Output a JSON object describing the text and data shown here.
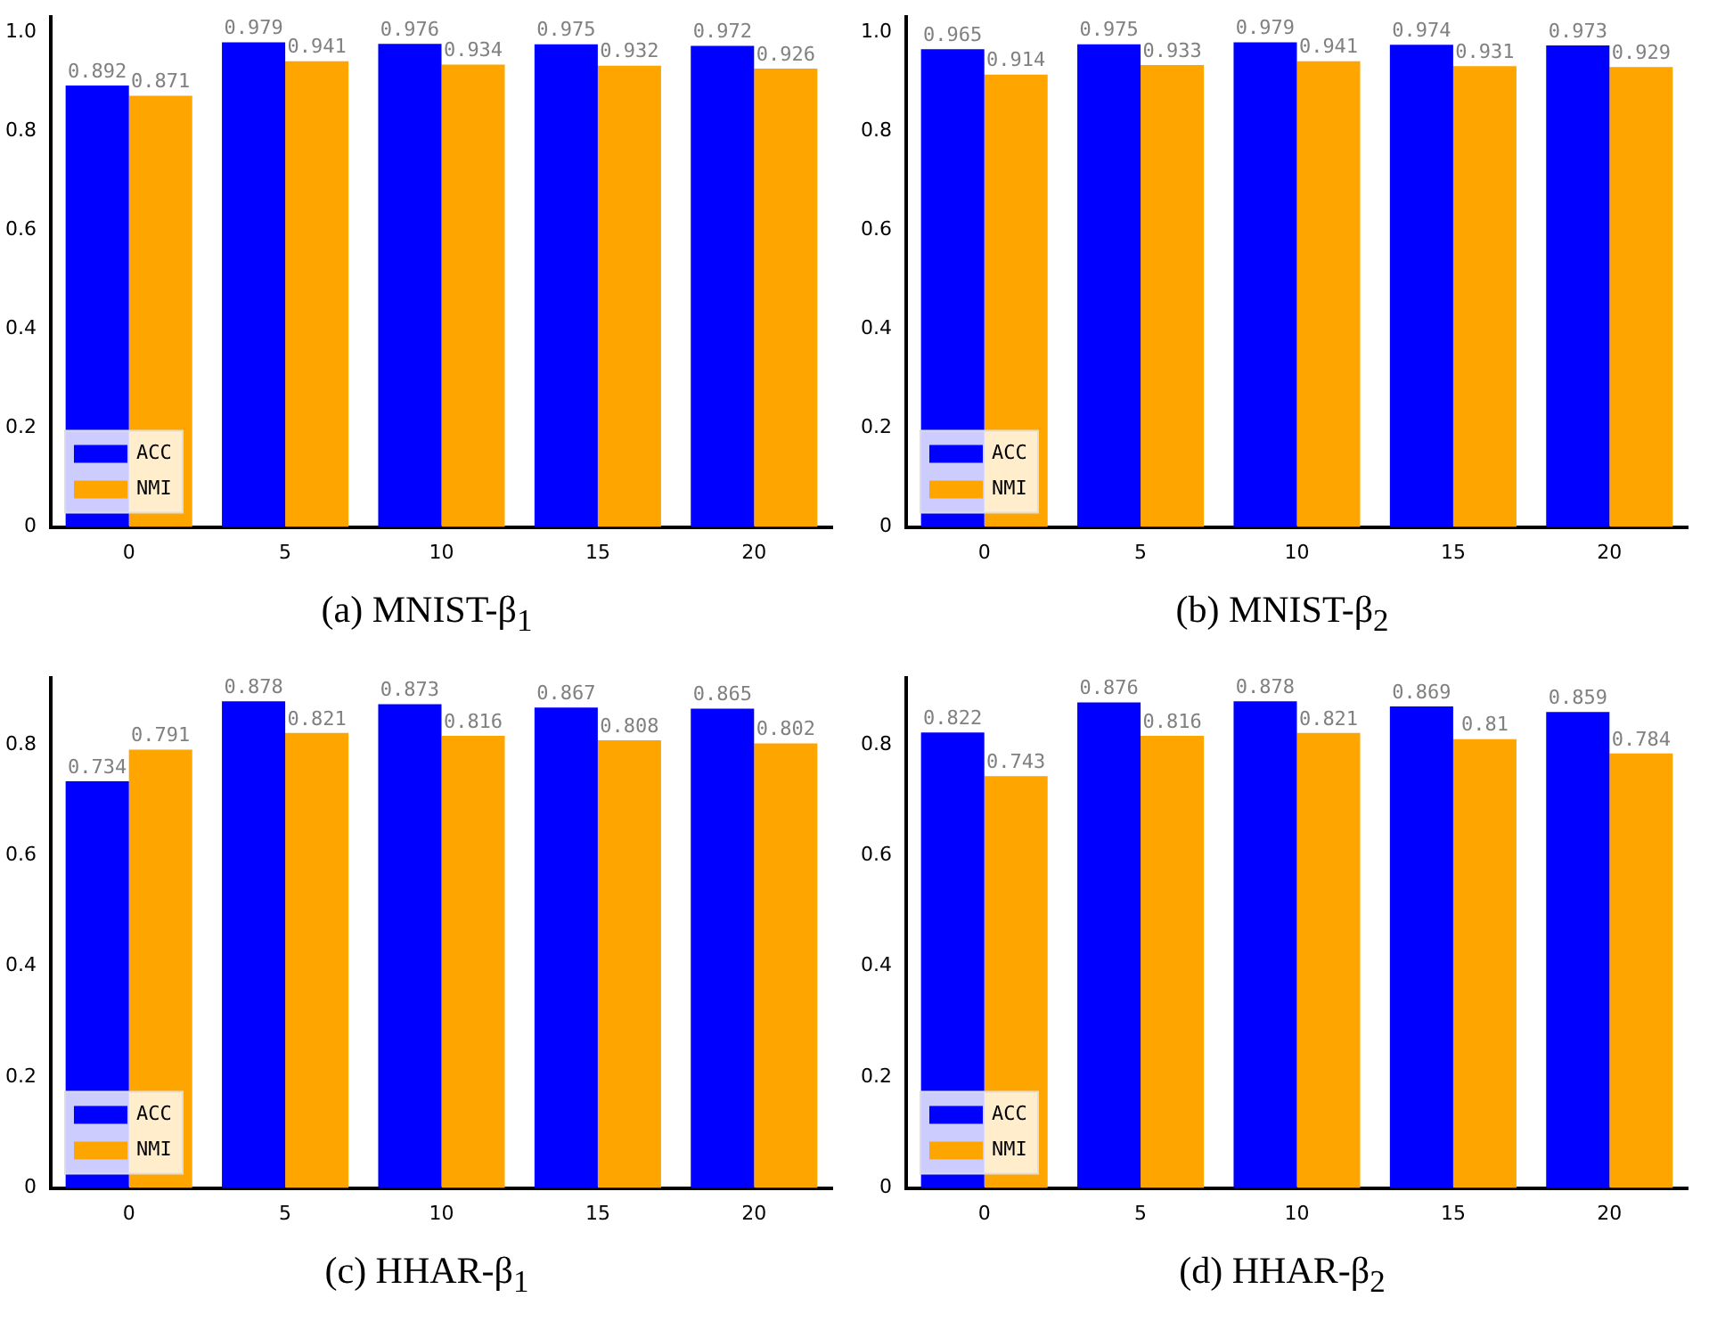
{
  "chart_data": [
    {
      "type": "bar",
      "title": "(a) MNIST-β$_{1}$",
      "categories": [
        "0",
        "5",
        "10",
        "15",
        "20"
      ],
      "series": [
        {
          "name": "ACC",
          "color": "#0000ff",
          "values": [
            0.892,
            0.979,
            0.976,
            0.975,
            0.972
          ]
        },
        {
          "name": "NMI",
          "color": "#ffa500",
          "values": [
            0.871,
            0.941,
            0.934,
            0.932,
            0.926
          ]
        }
      ],
      "ylim": [
        0,
        1.03
      ],
      "yticks": [
        0,
        0.2,
        0.4,
        0.6,
        0.8,
        {
          "value": 1,
          "label": "1.0"
        }
      ],
      "legend": "bottom left",
      "data_labels": true
    },
    {
      "type": "bar",
      "title": "(b) MNIST-β$_{2}$",
      "categories": [
        "0",
        "5",
        "10",
        "15",
        "20"
      ],
      "series": [
        {
          "name": "ACC",
          "color": "#0000ff",
          "values": [
            0.965,
            0.975,
            0.979,
            0.974,
            0.973
          ]
        },
        {
          "name": "NMI",
          "color": "#ffa500",
          "values": [
            0.914,
            0.933,
            0.941,
            0.931,
            0.929
          ]
        }
      ],
      "ylim": [
        0,
        1.03
      ],
      "yticks": [
        0,
        0.2,
        0.4,
        0.6,
        0.8,
        {
          "value": 1,
          "label": "1.0"
        }
      ],
      "legend": "bottom left",
      "data_labels": true
    },
    {
      "type": "bar",
      "title": "(c) HHAR-β$_{1}$",
      "categories": [
        "0",
        "5",
        "10",
        "15",
        "20"
      ],
      "series": [
        {
          "name": "ACC",
          "color": "#0000ff",
          "values": [
            0.734,
            0.878,
            0.873,
            0.867,
            0.865
          ]
        },
        {
          "name": "NMI",
          "color": "#ffa500",
          "values": [
            0.791,
            0.821,
            0.816,
            0.808,
            0.802
          ]
        }
      ],
      "ylim": [
        0,
        0.92
      ],
      "yticks": [
        0,
        0.2,
        0.4,
        0.6,
        0.8
      ],
      "legend": "bottom left",
      "data_labels": true
    },
    {
      "type": "bar",
      "title": "(d) HHAR-β$_{2}$",
      "categories": [
        "0",
        "5",
        "10",
        "15",
        "20"
      ],
      "series": [
        {
          "name": "ACC",
          "color": "#0000ff",
          "values": [
            0.822,
            0.876,
            0.878,
            0.869,
            0.859
          ]
        },
        {
          "name": "NMI",
          "color": "#ffa500",
          "values": [
            0.743,
            0.816,
            0.821,
            0.81,
            0.784
          ]
        }
      ],
      "ylim": [
        0,
        0.92
      ],
      "yticks": [
        0,
        0.2,
        0.4,
        0.6,
        0.8
      ],
      "legend": "bottom left",
      "data_labels": true
    }
  ]
}
